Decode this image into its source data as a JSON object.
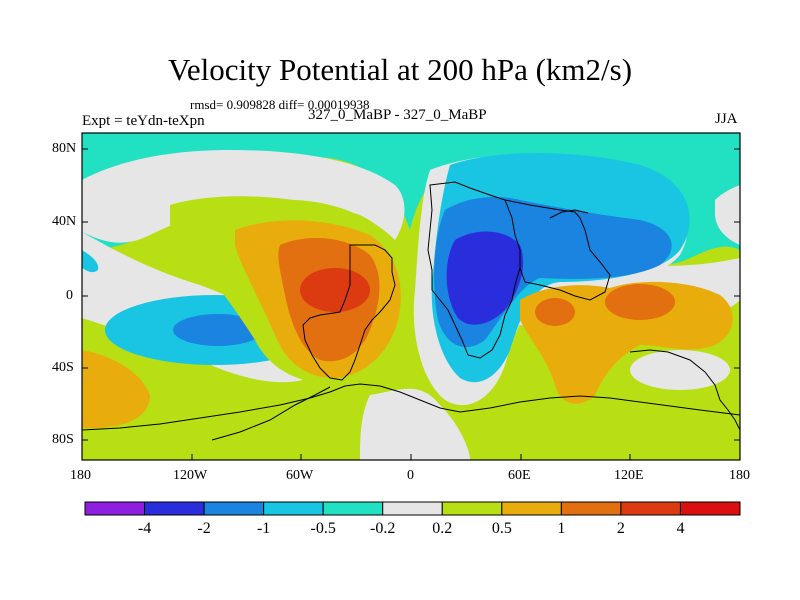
{
  "title": "Velocity Potential at 200 hPa (km2/s)",
  "stats_text": "rmsd= 0.909828 diff= 0.00019938",
  "experiment_label": "Expt = teYdn-teXpn",
  "case_label": "327_0_MaBP - 327_0_MaBP",
  "season_label": "JJA",
  "y_ticks": [
    "80N",
    "40N",
    "0",
    "40S",
    "80S"
  ],
  "x_ticks": [
    "180",
    "120W",
    "60W",
    "0",
    "60E",
    "120E",
    "180"
  ],
  "colorbar": {
    "labels": [
      "-4",
      "-2",
      "-1",
      "-0.5",
      "-0.2",
      "0.2",
      "0.5",
      "1",
      "2",
      "4"
    ],
    "colors": [
      "#8f1fe0",
      "#2a2ddb",
      "#1a84e0",
      "#19c5e3",
      "#22e0c2",
      "#e6e6e6",
      "#b7df13",
      "#e8ad0d",
      "#e26f10",
      "#dc3a10",
      "#da0f0f"
    ]
  }
}
